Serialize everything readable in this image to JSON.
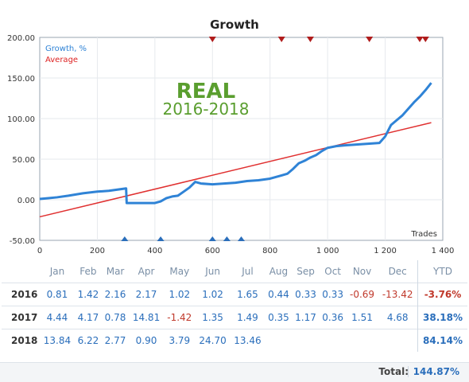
{
  "chart_data": {
    "type": "line",
    "title": "Growth",
    "xlabel": "Trades",
    "ylabel": "",
    "xlim": [
      0,
      1400
    ],
    "ylim": [
      -50,
      200
    ],
    "xticks": [
      0,
      200,
      400,
      600,
      800,
      1000,
      1200,
      1400
    ],
    "xtick_labels": [
      "0",
      "200",
      "400",
      "600",
      "800",
      "1 000",
      "1 200",
      "1 400"
    ],
    "yticks": [
      -50,
      0,
      50,
      100,
      150,
      200
    ],
    "ytick_labels": [
      "-50.00",
      "0.00",
      "50.00",
      "100.00",
      "150.00",
      "200.00"
    ],
    "grid": true,
    "legend": "top-left",
    "annotation": {
      "line1": "REAL",
      "line2": "2016-2018",
      "color": "#5a9e2f"
    },
    "series": [
      {
        "name": "Growth, %",
        "color": "#2f83d6",
        "x": [
          0,
          30,
          60,
          100,
          150,
          200,
          240,
          280,
          300,
          302,
          320,
          360,
          400,
          420,
          440,
          460,
          480,
          500,
          520,
          540,
          560,
          600,
          640,
          680,
          720,
          760,
          800,
          820,
          840,
          860,
          880,
          900,
          920,
          940,
          960,
          980,
          1000,
          1030,
          1060,
          1100,
          1140,
          1180,
          1200,
          1210,
          1220,
          1240,
          1260,
          1280,
          1300,
          1320,
          1340,
          1360
        ],
        "y": [
          1,
          2,
          3,
          5,
          8,
          10,
          11,
          13,
          14,
          -4,
          -4,
          -4,
          -4,
          -2,
          2,
          4,
          5,
          10,
          15,
          22,
          20,
          19,
          20,
          21,
          23,
          24,
          26,
          28,
          30,
          32,
          38,
          45,
          48,
          52,
          55,
          60,
          64,
          66,
          67,
          68,
          69,
          70,
          78,
          85,
          92,
          98,
          104,
          112,
          120,
          127,
          135,
          144
        ]
      },
      {
        "name": "Average",
        "color": "#e03030",
        "x": [
          0,
          1360
        ],
        "y": [
          -21,
          95
        ]
      }
    ],
    "top_markers_x": [
      600,
      840,
      940,
      1145,
      1320,
      1340
    ],
    "bottom_markers_x": [
      295,
      420,
      600,
      650,
      700
    ]
  },
  "table": {
    "months": [
      "Jan",
      "Feb",
      "Mar",
      "Apr",
      "May",
      "Jun",
      "Jul",
      "Aug",
      "Sep",
      "Oct",
      "Nov",
      "Dec"
    ],
    "ytd_header": "YTD",
    "rows": [
      {
        "year": "2016",
        "values": [
          "0.81",
          "1.42",
          "2.16",
          "2.17",
          "1.02",
          "1.02",
          "1.65",
          "0.44",
          "0.33",
          "0.33",
          "-0.69",
          "-13.42"
        ],
        "ytd": "-3.76%"
      },
      {
        "year": "2017",
        "values": [
          "4.44",
          "4.17",
          "0.78",
          "14.81",
          "-1.42",
          "1.35",
          "1.49",
          "0.35",
          "1.17",
          "0.36",
          "1.51",
          "4.68"
        ],
        "ytd": "38.18%"
      },
      {
        "year": "2018",
        "values": [
          "13.84",
          "6.22",
          "2.77",
          "0.90",
          "3.79",
          "24.70",
          "13.46",
          "",
          "",
          "",
          "",
          ""
        ],
        "ytd": "84.14%"
      }
    ],
    "total_label": "Total:",
    "total_value": "144.87%"
  }
}
